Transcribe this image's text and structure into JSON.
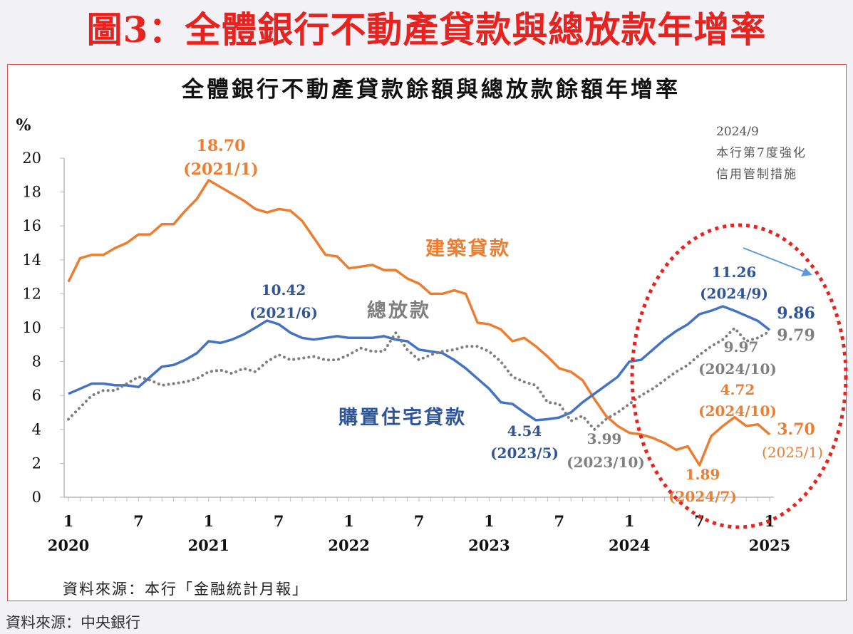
{
  "page": {
    "title": "圖3：全體銀行不動產貸款與總放款年增率",
    "source": "資料來源：中央銀行"
  },
  "chart_data": {
    "type": "line",
    "title": "全體銀行不動產貸款餘額與總放款餘額年增率",
    "ylabel": "%",
    "ylim": [
      0,
      20
    ],
    "yticks": [
      "0",
      "2",
      "4",
      "6",
      "8",
      "10",
      "12",
      "14",
      "16",
      "18",
      "20"
    ],
    "x_range": [
      "2020/1",
      "2025/1"
    ],
    "xtick_months": [
      "1",
      "7",
      "1",
      "7",
      "1",
      "7",
      "1",
      "7",
      "1",
      "7",
      "1"
    ],
    "xtick_years": [
      "2020",
      "2021",
      "2022",
      "2023",
      "2024",
      "2025"
    ],
    "grid": false,
    "source_note": "資料來源：本行「金融統計月報」",
    "colors": {
      "construction": "#ed7d31",
      "housing": "#4472c4",
      "total": "#7f7f7f",
      "highlight": "#e8231f"
    },
    "series": [
      {
        "name": "建築貸款",
        "style": "solid",
        "values": [
          12.7,
          14.1,
          14.3,
          14.3,
          14.7,
          15.0,
          15.5,
          15.5,
          16.1,
          16.1,
          16.9,
          17.6,
          18.7,
          18.3,
          17.9,
          17.5,
          17.0,
          16.8,
          17.0,
          16.9,
          16.3,
          15.3,
          14.3,
          14.2,
          13.5,
          13.6,
          13.7,
          13.4,
          13.4,
          12.9,
          12.6,
          12.0,
          12.0,
          12.2,
          12.0,
          10.3,
          10.2,
          9.9,
          9.2,
          9.4,
          8.9,
          8.3,
          7.6,
          7.4,
          6.9,
          5.8,
          4.8,
          4.2,
          3.8,
          3.7,
          3.5,
          3.2,
          2.8,
          3.0,
          1.89,
          3.6,
          4.2,
          4.72,
          4.2,
          4.3,
          3.7
        ]
      },
      {
        "name": "購置住宅貸款",
        "style": "solid",
        "values": [
          6.1,
          6.4,
          6.7,
          6.7,
          6.6,
          6.6,
          6.5,
          7.1,
          7.7,
          7.8,
          8.1,
          8.5,
          9.2,
          9.1,
          9.3,
          9.6,
          10.0,
          10.42,
          10.2,
          9.7,
          9.4,
          9.3,
          9.4,
          9.5,
          9.4,
          9.4,
          9.4,
          9.5,
          9.3,
          9.2,
          8.7,
          8.6,
          8.5,
          8.1,
          7.6,
          7.0,
          6.4,
          5.6,
          5.5,
          5.0,
          4.54,
          4.6,
          4.7,
          5.0,
          5.6,
          6.1,
          6.6,
          7.1,
          8.0,
          8.1,
          8.7,
          9.3,
          9.8,
          10.2,
          10.8,
          11.0,
          11.26,
          11.0,
          10.7,
          10.4,
          9.86
        ]
      },
      {
        "name": "總放款",
        "style": "dotted",
        "values": [
          4.6,
          5.3,
          6.0,
          6.3,
          6.3,
          6.7,
          7.1,
          6.9,
          6.6,
          6.7,
          6.8,
          7.0,
          7.4,
          7.5,
          7.3,
          7.6,
          7.4,
          8.0,
          8.4,
          8.1,
          8.2,
          8.3,
          8.1,
          8.1,
          8.4,
          8.8,
          8.6,
          8.6,
          9.7,
          8.7,
          8.1,
          8.4,
          8.6,
          8.7,
          8.9,
          8.9,
          8.6,
          8.0,
          7.1,
          6.8,
          6.6,
          5.6,
          5.5,
          4.5,
          4.8,
          3.99,
          4.6,
          5.0,
          5.5,
          6.0,
          6.4,
          6.9,
          7.4,
          7.8,
          8.4,
          8.9,
          9.3,
          9.97,
          9.2,
          9.4,
          9.79
        ]
      }
    ],
    "annotations": {
      "c_peak_value": "18.70",
      "c_peak_date": "(2021/1)",
      "h_peak_value": "10.42",
      "h_peak_date": "(2021/6)",
      "h_low_value": "4.54",
      "h_low_date": "(2023/5)",
      "t_low_value": "3.99",
      "t_low_date": "(2023/10)",
      "h_peak2_value": "11.26",
      "h_peak2_date": "(2024/9)",
      "h_last": "9.86",
      "t_last": "9.79",
      "t_peak_value": "9.97",
      "t_peak_date": "(2024/10)",
      "c_peak2_value": "4.72",
      "c_peak2_date": "(2024/10)",
      "c_low_value": "1.89",
      "c_low_date": "(2024/7)",
      "c_last_value": "3.70",
      "c_last_date": "(2025/1)",
      "policy_date": "2024/9",
      "policy_line1": "本行第7度強化",
      "policy_line2": "信用管制措施"
    }
  }
}
